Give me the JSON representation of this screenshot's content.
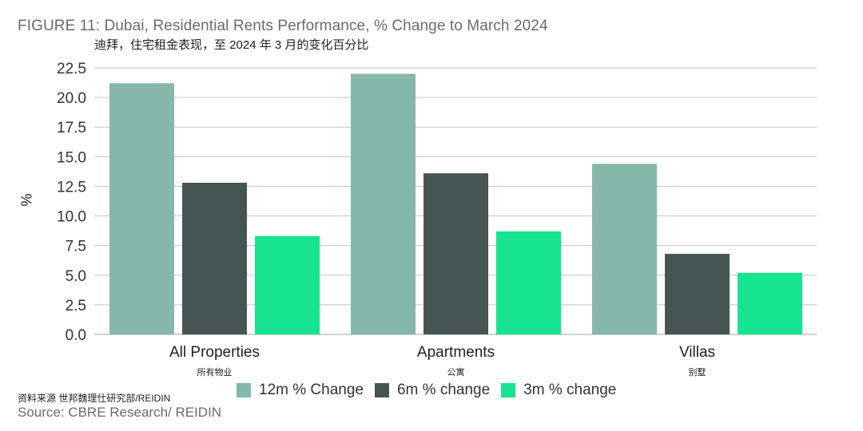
{
  "title_en": "FIGURE 11: Dubai, Residential Rents Performance, % Change to March 2024",
  "title_zh": "迪拜，住宅租金表现，至 2024 年 3 月的变化百分比",
  "source_zh": "资料来源 世邦魏理仕研究部/REIDIN",
  "source_en": "Source: CBRE Research/ REIDIN",
  "chart_data": {
    "type": "bar",
    "title": "FIGURE 11: Dubai, Residential Rents Performance, % Change to March 2024",
    "ylabel": "%",
    "xlabel": "",
    "ylim": [
      0,
      22.5
    ],
    "yticks": [
      "0.0",
      "2.5",
      "5.0",
      "7.5",
      "10.0",
      "12.5",
      "15.0",
      "17.5",
      "20.0",
      "22.5"
    ],
    "grid": "horizontal",
    "legend_position": "bottom",
    "categories": [
      "All Properties",
      "Apartments",
      "Villas"
    ],
    "categories_zh": [
      "所有物业",
      "公寓",
      "别墅"
    ],
    "series": [
      {
        "name": "12m % Change",
        "color": "#85b8a9",
        "values": [
          21.2,
          22.0,
          14.4
        ]
      },
      {
        "name": "6m % change",
        "color": "#475552",
        "values": [
          12.8,
          13.6,
          6.8
        ]
      },
      {
        "name": "3m % change",
        "color": "#17e490",
        "values": [
          8.3,
          8.7,
          5.2
        ]
      }
    ]
  }
}
